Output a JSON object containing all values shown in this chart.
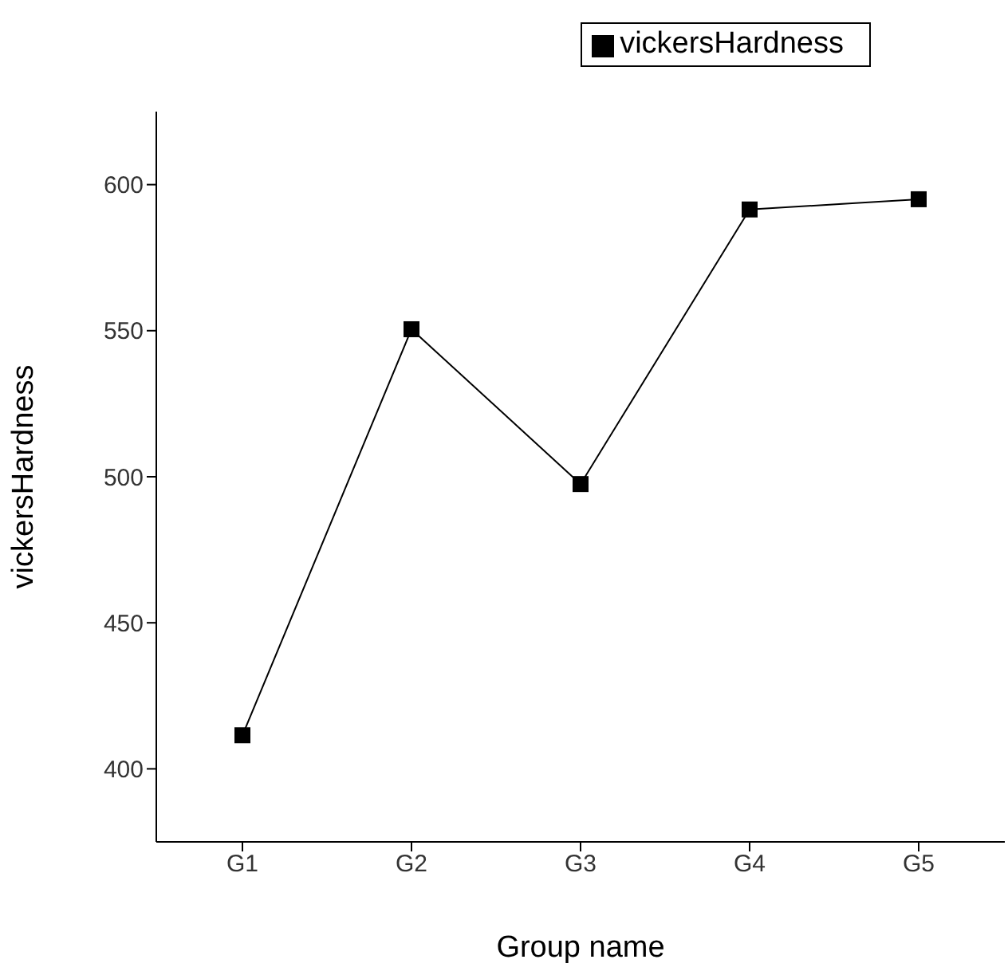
{
  "chart_data": {
    "type": "line",
    "xlabel": "Group name",
    "ylabel": "vickersHardness",
    "categories": [
      "G1",
      "G2",
      "G3",
      "G4",
      "G5"
    ],
    "series": [
      {
        "name": "vickersHardness",
        "color": "#000000",
        "values": [
          411.5,
          550.5,
          497.5,
          591.5,
          595
        ]
      }
    ],
    "ylim": [
      375,
      625
    ],
    "yticks": [
      400,
      450,
      500,
      550,
      600
    ],
    "grid": false,
    "legend": "top right",
    "marker": "square",
    "line_style": "solid"
  }
}
